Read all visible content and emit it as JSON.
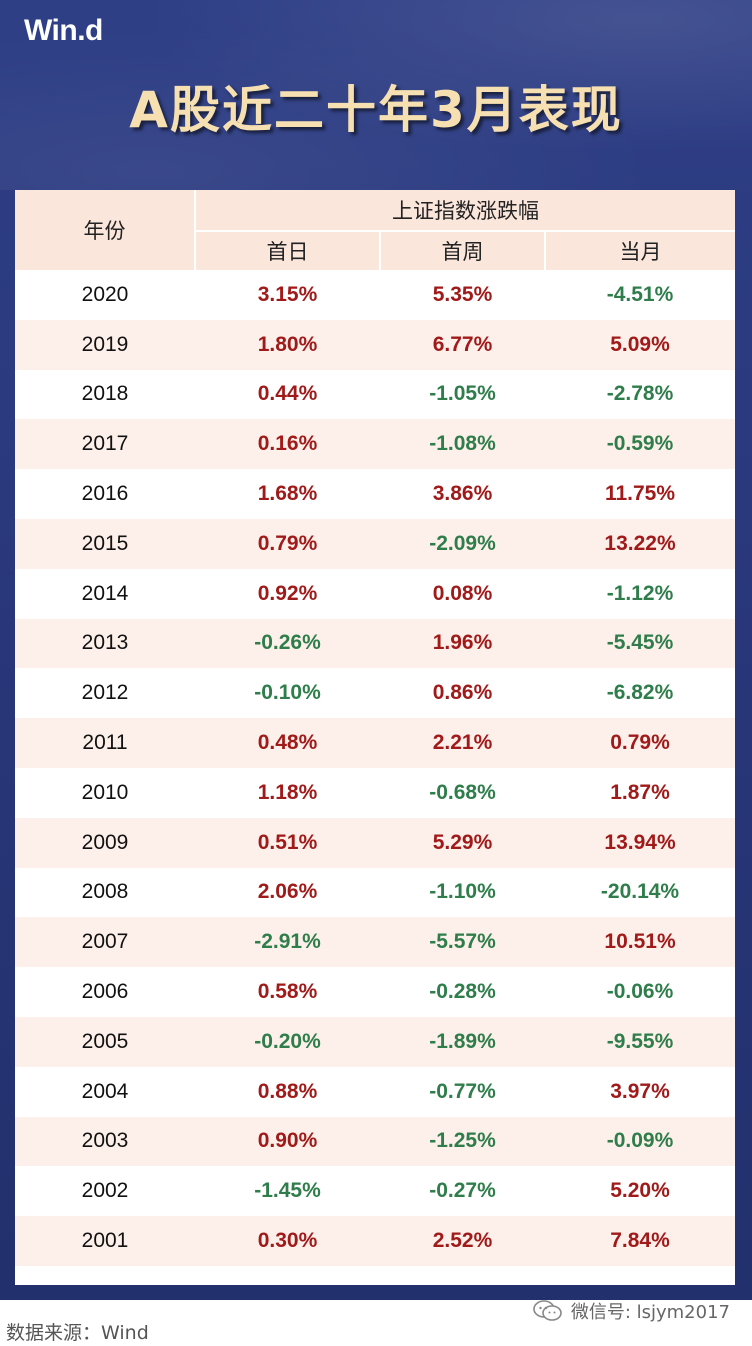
{
  "brand": "Win.d",
  "title": "A股近二十年3月表现",
  "table": {
    "year_header": "年份",
    "group_header": "上证指数涨跌幅",
    "sub_headers": [
      "首日",
      "首周",
      "当月"
    ],
    "rows": [
      {
        "year": "2020",
        "day": "3.15%",
        "week": "5.35%",
        "month": "-4.51%"
      },
      {
        "year": "2019",
        "day": "1.80%",
        "week": "6.77%",
        "month": "5.09%"
      },
      {
        "year": "2018",
        "day": "0.44%",
        "week": "-1.05%",
        "month": "-2.78%"
      },
      {
        "year": "2017",
        "day": "0.16%",
        "week": "-1.08%",
        "month": "-0.59%"
      },
      {
        "year": "2016",
        "day": "1.68%",
        "week": "3.86%",
        "month": "11.75%"
      },
      {
        "year": "2015",
        "day": "0.79%",
        "week": "-2.09%",
        "month": "13.22%"
      },
      {
        "year": "2014",
        "day": "0.92%",
        "week": "0.08%",
        "month": "-1.12%"
      },
      {
        "year": "2013",
        "day": "-0.26%",
        "week": "1.96%",
        "month": "-5.45%"
      },
      {
        "year": "2012",
        "day": "-0.10%",
        "week": "0.86%",
        "month": "-6.82%"
      },
      {
        "year": "2011",
        "day": "0.48%",
        "week": "2.21%",
        "month": "0.79%"
      },
      {
        "year": "2010",
        "day": "1.18%",
        "week": "-0.68%",
        "month": "1.87%"
      },
      {
        "year": "2009",
        "day": "0.51%",
        "week": "5.29%",
        "month": "13.94%"
      },
      {
        "year": "2008",
        "day": "2.06%",
        "week": "-1.10%",
        "month": "-20.14%"
      },
      {
        "year": "2007",
        "day": "-2.91%",
        "week": "-5.57%",
        "month": "10.51%"
      },
      {
        "year": "2006",
        "day": "0.58%",
        "week": "-0.28%",
        "month": "-0.06%"
      },
      {
        "year": "2005",
        "day": "-0.20%",
        "week": "-1.89%",
        "month": "-9.55%"
      },
      {
        "year": "2004",
        "day": "0.88%",
        "week": "-0.77%",
        "month": "3.97%"
      },
      {
        "year": "2003",
        "day": "0.90%",
        "week": "-1.25%",
        "month": "-0.09%"
      },
      {
        "year": "2002",
        "day": "-1.45%",
        "week": "-0.27%",
        "month": "5.20%"
      },
      {
        "year": "2001",
        "day": "0.30%",
        "week": "2.52%",
        "month": "7.84%"
      }
    ]
  },
  "footer": {
    "source": "数据来源：Wind",
    "wechat": "微信号: lsjym2017"
  },
  "colors": {
    "positive": "#a01a1a",
    "negative": "#2e7d4a",
    "frame": "#2f3f86",
    "title": "#f6dfb0",
    "stripe": "#fdf0ea"
  },
  "icons": {
    "wechat": "wechat-icon"
  }
}
